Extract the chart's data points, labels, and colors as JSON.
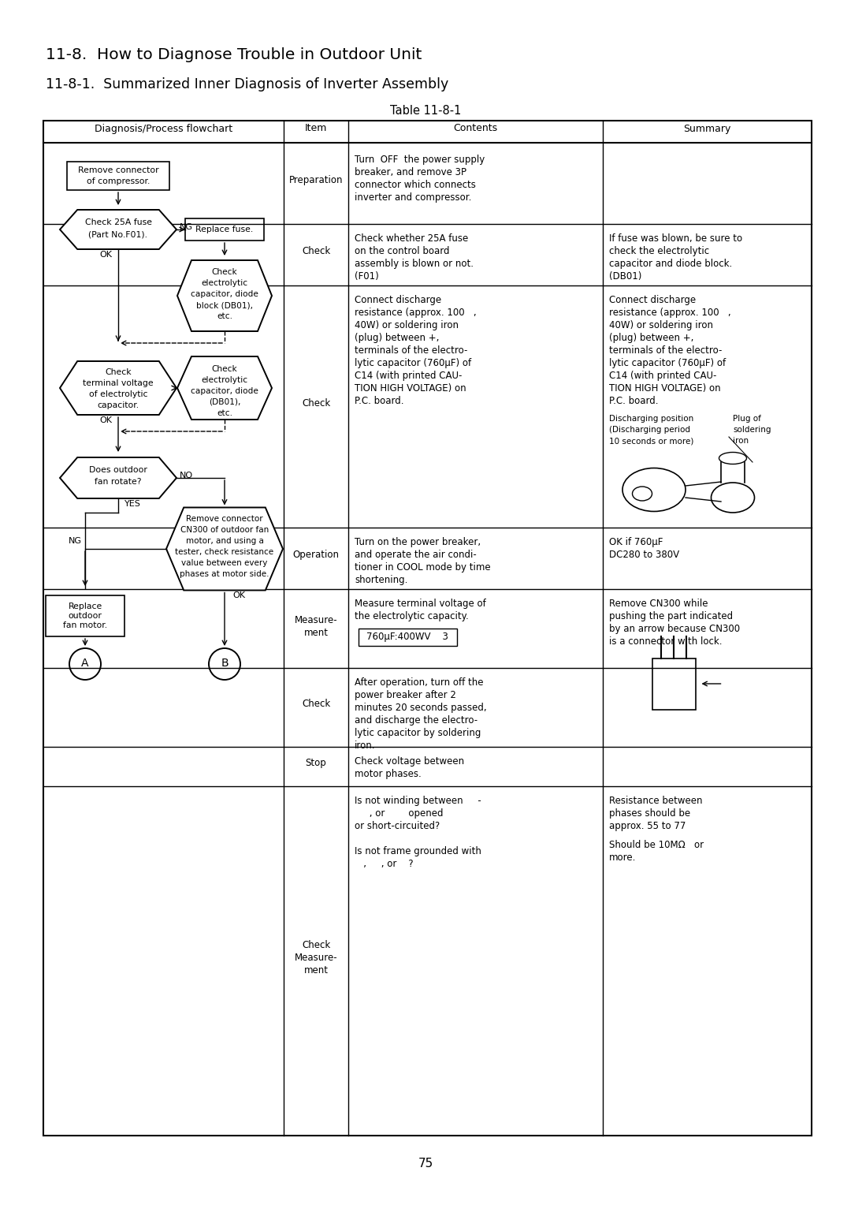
{
  "title1": "11-8.  How to Diagnose Trouble in Outdoor Unit",
  "title2": "11-8-1.  Summarized Inner Diagnosis of Inverter Assembly",
  "table_title": "Table 11-8-1",
  "col_headers": [
    "Diagnosis/Process flowchart",
    "Item",
    "Contents",
    "Summary"
  ],
  "page_number": "75",
  "bg_color": "#ffffff",
  "preparation_content": [
    "Turn  OFF  the power supply",
    "breaker, and remove 3P",
    "connector which connects",
    "inverter and compressor."
  ],
  "check1_content": [
    "Check whether 25A fuse",
    "on the control board",
    "assembly is blown or not.",
    "(F01)"
  ],
  "check2_content": [
    "Connect discharge",
    "resistance (approx. 100   ,",
    "40W) or soldering iron",
    "(plug) between +,",
    "terminals of the electro-",
    "lytic capacitor (760μF) of",
    "C14 (with printed CAU-",
    "TION HIGH VOLTAGE) on",
    "P.C. board."
  ],
  "operation_content": [
    "Turn on the power breaker,",
    "and operate the air condi-",
    "tioner in COOL mode by time",
    "shortening."
  ],
  "measurement_content": [
    "Measure terminal voltage of",
    "the electrolytic capacity."
  ],
  "check3_content": [
    "After operation, turn off the",
    "power breaker after 2",
    "minutes 20 seconds passed,",
    "and discharge the electro-",
    "lytic capacitor by soldering",
    "iron."
  ],
  "stop_content": [
    "Check voltage between",
    "motor phases."
  ],
  "checkmeas_content": [
    "Is not winding between     -",
    "     , or        opened",
    "or short-circuited?",
    "",
    "Is not frame grounded with",
    "   ,     , or    ?"
  ],
  "summary1": [
    "If fuse was blown, be sure to",
    "check the electrolytic",
    "capacitor and diode block.",
    "(DB01)"
  ],
  "summary2": [
    "Connect discharge",
    "resistance (approx. 100   ,",
    "40W) or soldering iron",
    "(plug) between +,",
    "terminals of the electro-",
    "lytic capacitor (760μF) of",
    "C14 (with printed CAU-",
    "TION HIGH VOLTAGE) on",
    "P.C. board."
  ],
  "summary_op": [
    "OK if 760μF",
    "DC280 to 380V"
  ],
  "summary_meas": [
    "Remove CN300 while",
    "pushing the part indicated",
    "by an arrow because CN300",
    "is a connector with lock."
  ],
  "summary_resist": [
    "Resistance between",
    "phases should be",
    "approx. 55 to 77"
  ],
  "summary_ground": [
    "Should be 10MΩ   or",
    "more."
  ]
}
